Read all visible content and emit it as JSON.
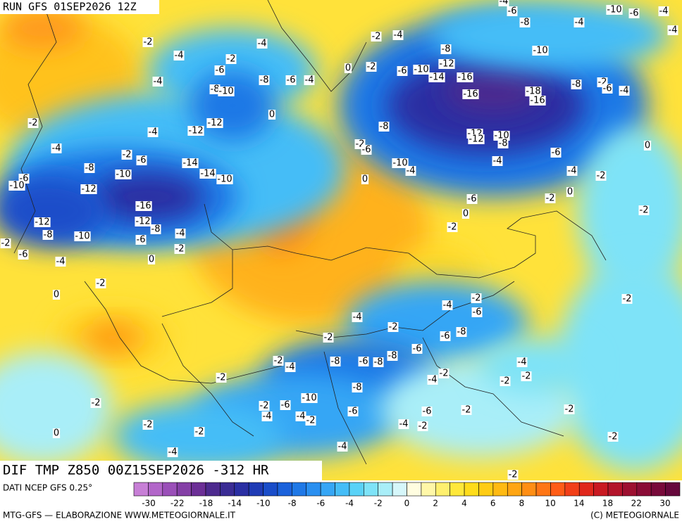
{
  "header": "RUN GFS 01SEP2026 12Z",
  "field_title": "DIF TMP Z850 00Z15SEP2026 -312 HR",
  "source": "DATI NCEP GFS 0.25°",
  "footer_left": "MTG-GFS — ELABORAZIONE WWW.METEOGIORNALE.IT",
  "footer_right": "(C) METEOGIORNALE",
  "colorbar": {
    "colors": [
      "#c77fd6",
      "#b266c9",
      "#9a4fb8",
      "#843fa6",
      "#6c2f96",
      "#4d2a8e",
      "#3a2c94",
      "#2a2fa3",
      "#1f3bb5",
      "#1a4dc9",
      "#1b62db",
      "#1f78e6",
      "#2a8ff0",
      "#36a6f5",
      "#45bdf7",
      "#5ad2f7",
      "#7ee3f8",
      "#a9eef8",
      "#d6f7fa",
      "#fffde0",
      "#fff7a8",
      "#fff06e",
      "#ffe83a",
      "#ffdc1a",
      "#ffcc14",
      "#ffba12",
      "#ffa512",
      "#ff8e14",
      "#ff7615",
      "#ff5c16",
      "#f23f18",
      "#e0281c",
      "#c91a22",
      "#b3142a",
      "#9d1030",
      "#8a0c36",
      "#780a3a",
      "#66083c"
    ],
    "ticks": [
      -30,
      -22,
      -18,
      -14,
      -10,
      -8,
      -6,
      -4,
      -2,
      0,
      2,
      4,
      6,
      8,
      10,
      14,
      18,
      22,
      30
    ]
  },
  "contour_labels": [
    -4,
    -6,
    -10,
    -6,
    -4,
    -8,
    -4,
    -4,
    -2,
    -2,
    -4,
    -4,
    -8,
    -10,
    -4,
    -2,
    -12,
    -2,
    0,
    -6,
    -10,
    -6,
    -16,
    -14,
    -4,
    -8,
    -6,
    -4,
    -8,
    -2,
    -6,
    -4,
    -8,
    -10,
    -18,
    -16,
    -16,
    0,
    -12,
    -2,
    -12,
    -4,
    -8,
    -12,
    -10,
    -12,
    -8,
    -2,
    -6,
    0,
    -4,
    -2,
    -6,
    -6,
    -14,
    -10,
    -4,
    -4,
    -8,
    -10,
    -14,
    -10,
    -4,
    -2,
    -6,
    -10,
    -12,
    0,
    -6,
    -2,
    0,
    -16,
    -2,
    0,
    -12,
    -12,
    -8,
    -8,
    -10,
    -4,
    -2,
    -2,
    -6,
    -2,
    -6,
    -4,
    0,
    -2,
    0,
    -2,
    -2,
    -4,
    -6,
    -4,
    -2,
    -6,
    -8,
    -2,
    -6,
    -8,
    -2,
    -4,
    -8,
    -6,
    -8,
    -4,
    -2,
    -4,
    -2,
    -2,
    -2,
    -8,
    -10,
    -2,
    -2,
    -6,
    -6,
    -6,
    -2,
    -2,
    -4,
    -4,
    -2,
    -2,
    -4,
    -2,
    -2,
    0,
    -2,
    -4,
    -4,
    -2
  ]
}
